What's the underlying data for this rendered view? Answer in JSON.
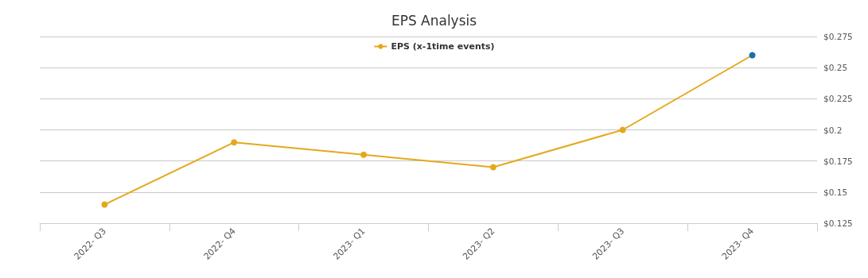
{
  "chart_data": {
    "type": "line",
    "title": "EPS Analysis",
    "categories": [
      "2022- Q3",
      "2022- Q4",
      "2023- Q1",
      "2023- Q2",
      "2023- Q3",
      "2023- Q4"
    ],
    "series": [
      {
        "name": "EPS (x-1time events)",
        "color": "#e3a91c",
        "colors": [
          "#e3a91c",
          "#e3a91c",
          "#e3a91c",
          "#e3a91c",
          "#e3a91c",
          "#1a6ea8"
        ],
        "values": [
          0.14,
          0.19,
          0.18,
          0.17,
          0.2,
          0.26
        ]
      }
    ],
    "ylim": [
      0.125,
      0.275
    ],
    "yticks": [
      {
        "value": 0.125,
        "label": "$0.125"
      },
      {
        "value": 0.15,
        "label": "$0.15"
      },
      {
        "value": 0.175,
        "label": "$0.175"
      },
      {
        "value": 0.2,
        "label": "$0.2"
      },
      {
        "value": 0.225,
        "label": "$0.225"
      },
      {
        "value": 0.25,
        "label": "$0.25"
      },
      {
        "value": 0.275,
        "label": "$0.275"
      }
    ],
    "grid": "y",
    "legend": "top",
    "marker": "circle",
    "line_style": "solid"
  }
}
